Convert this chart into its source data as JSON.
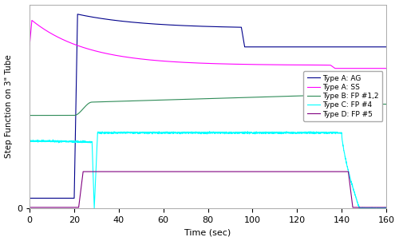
{
  "xlabel": "Time (sec)",
  "ylabel": "Step Function on 3\" Tube",
  "xlim": [
    0,
    160
  ],
  "xticks": [
    0,
    20,
    40,
    60,
    80,
    100,
    120,
    140,
    160
  ],
  "figsize": [
    5.0,
    3.02
  ],
  "dpi": 100,
  "background_color": "#ffffff",
  "grid_color": "#c8c8c8",
  "legend_items": [
    {
      "label": "Type A: AG",
      "color": "#00008B"
    },
    {
      "label": "Type A: SS",
      "color": "#FF00FF"
    },
    {
      "label": "Type B: FP #1,2",
      "color": "#2E8B57"
    },
    {
      "label": "Type C: FP #4",
      "color": "#00FFFF"
    },
    {
      "label": "Type D: FP #5",
      "color": "#800080"
    }
  ]
}
